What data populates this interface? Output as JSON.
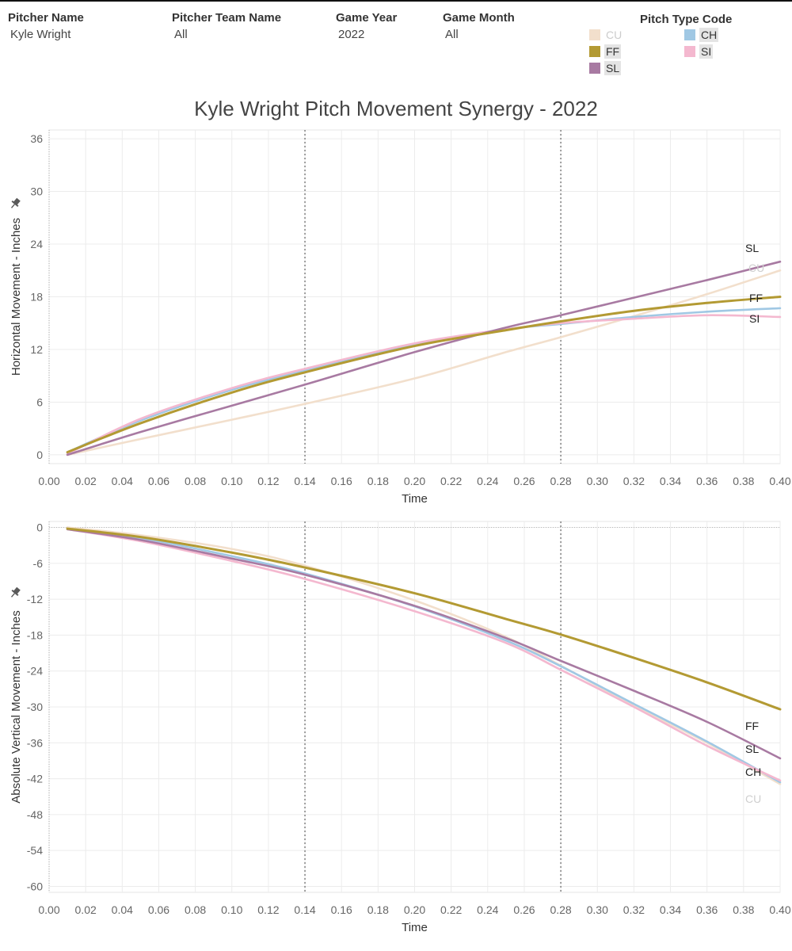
{
  "filters": [
    {
      "title": "Pitcher Name",
      "value": "Kyle Wright"
    },
    {
      "title": "Pitcher Team Name",
      "value": "All"
    },
    {
      "title": "Game Year",
      "value": "2022"
    },
    {
      "title": "Game Month",
      "value": "All"
    }
  ],
  "legend": {
    "title": "Pitch Type Code",
    "items": [
      {
        "code": "CU",
        "color": "#f2dfcc",
        "active": false
      },
      {
        "code": "CH",
        "color": "#a0c8e4",
        "active": true
      },
      {
        "code": "FF",
        "color": "#b39a33",
        "active": true
      },
      {
        "code": "SI",
        "color": "#f4b8cf",
        "active": true
      },
      {
        "code": "SL",
        "color": "#a87aa2",
        "active": true
      }
    ]
  },
  "pin_icon": "pin-icon",
  "chart_data": [
    {
      "type": "line",
      "title": "Kyle Wright Pitch Movement Synergy - 2022",
      "xlabel": "Time",
      "ylabel": "Horizontal Movement - Inches",
      "xlim": [
        0.0,
        0.4
      ],
      "ylim": [
        -1,
        37
      ],
      "xticks": [
        "0.00",
        "0.02",
        "0.04",
        "0.06",
        "0.08",
        "0.10",
        "0.12",
        "0.14",
        "0.16",
        "0.18",
        "0.20",
        "0.22",
        "0.24",
        "0.26",
        "0.28",
        "0.30",
        "0.32",
        "0.34",
        "0.36",
        "0.38",
        "0.40"
      ],
      "yticks": [
        "0",
        "6",
        "12",
        "18",
        "24",
        "30",
        "36"
      ],
      "reference_lines_x": [
        0.14,
        0.28
      ],
      "grid": true,
      "x": [
        0.01,
        0.05,
        0.1,
        0.14,
        0.2,
        0.25,
        0.28,
        0.32,
        0.36,
        0.4
      ],
      "series": [
        {
          "name": "CU",
          "values": [
            0.0,
            1.8,
            4.0,
            5.8,
            8.7,
            11.7,
            13.4,
            15.8,
            18.3,
            21.0
          ]
        },
        {
          "name": "CH",
          "values": [
            0.3,
            3.9,
            7.4,
            9.6,
            12.6,
            14.3,
            14.9,
            15.7,
            16.3,
            16.7
          ]
        },
        {
          "name": "FF",
          "values": [
            0.3,
            3.6,
            7.1,
            9.4,
            12.4,
            14.2,
            15.2,
            16.4,
            17.3,
            18.0
          ]
        },
        {
          "name": "SI",
          "values": [
            0.1,
            4.1,
            7.6,
            9.8,
            12.7,
            14.3,
            15.0,
            15.5,
            15.9,
            15.7
          ]
        },
        {
          "name": "SL",
          "values": [
            0.0,
            2.6,
            5.6,
            8.0,
            11.7,
            14.5,
            15.9,
            17.9,
            19.9,
            22.0
          ]
        }
      ]
    },
    {
      "type": "line",
      "xlabel": "Time",
      "ylabel": "Absolute Vertical Movement - Inches",
      "xlim": [
        0.0,
        0.4
      ],
      "ylim": [
        -61,
        1
      ],
      "xticks": [
        "0.00",
        "0.02",
        "0.04",
        "0.06",
        "0.08",
        "0.10",
        "0.12",
        "0.14",
        "0.16",
        "0.18",
        "0.20",
        "0.22",
        "0.24",
        "0.26",
        "0.28",
        "0.30",
        "0.32",
        "0.34",
        "0.36",
        "0.38",
        "0.40"
      ],
      "yticks": [
        "0",
        "-6",
        "-12",
        "-18",
        "-24",
        "-30",
        "-36",
        "-42",
        "-48",
        "-54",
        "-60"
      ],
      "reference_lines_x": [
        0.14,
        0.28
      ],
      "grid": true,
      "x": [
        0.01,
        0.05,
        0.1,
        0.14,
        0.2,
        0.25,
        0.28,
        0.32,
        0.36,
        0.4
      ],
      "series": [
        {
          "name": "CU",
          "values": [
            0.0,
            -1.3,
            -3.6,
            -6.4,
            -12.2,
            -18.3,
            -23.1,
            -29.8,
            -36.0,
            -42.9
          ]
        },
        {
          "name": "CH",
          "values": [
            -0.3,
            -1.8,
            -4.8,
            -7.7,
            -13.2,
            -18.9,
            -23.2,
            -29.5,
            -35.8,
            -42.6
          ]
        },
        {
          "name": "FF",
          "values": [
            -0.2,
            -1.6,
            -4.2,
            -6.7,
            -11.0,
            -15.3,
            -17.9,
            -21.8,
            -25.9,
            -30.4
          ]
        },
        {
          "name": "SI",
          "values": [
            -0.3,
            -2.3,
            -5.6,
            -8.6,
            -14.0,
            -19.3,
            -23.8,
            -30.0,
            -36.5,
            -42.3
          ]
        },
        {
          "name": "SL",
          "values": [
            -0.3,
            -2.1,
            -5.2,
            -7.9,
            -13.1,
            -18.5,
            -22.3,
            -27.3,
            -32.5,
            -38.6
          ]
        }
      ]
    }
  ]
}
